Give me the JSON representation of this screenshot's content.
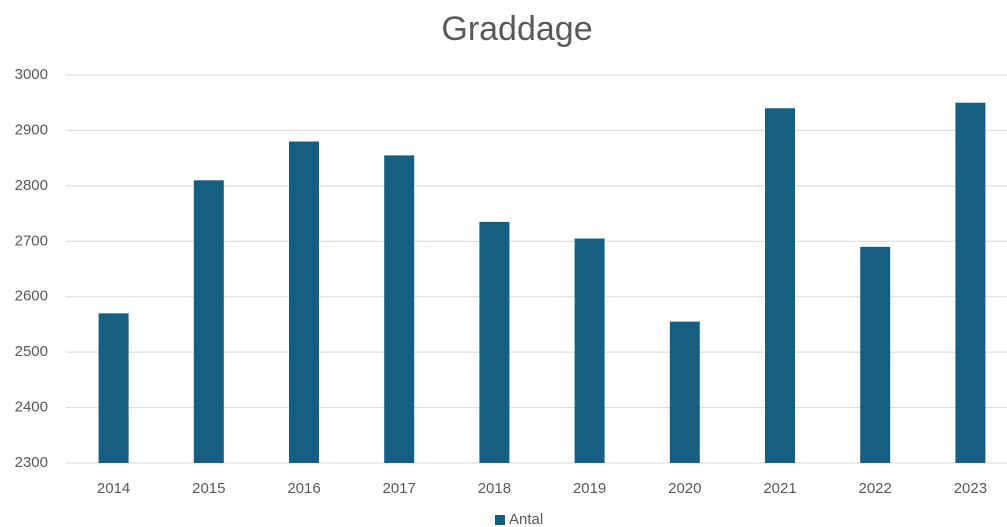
{
  "chart_data": {
    "type": "bar",
    "title": "Graddage",
    "categories": [
      "2014",
      "2015",
      "2016",
      "2017",
      "2018",
      "2019",
      "2020",
      "2021",
      "2022",
      "2023"
    ],
    "series": [
      {
        "name": "Antal",
        "color": "#156082",
        "values": [
          2570,
          2810,
          2880,
          2855,
          2735,
          2705,
          2555,
          2940,
          2690,
          2950
        ]
      }
    ],
    "ylim": [
      2300,
      3000
    ],
    "yticks": [
      2300,
      2400,
      2500,
      2600,
      2700,
      2800,
      2900,
      3000
    ],
    "grid": true,
    "legend": "bottom"
  }
}
